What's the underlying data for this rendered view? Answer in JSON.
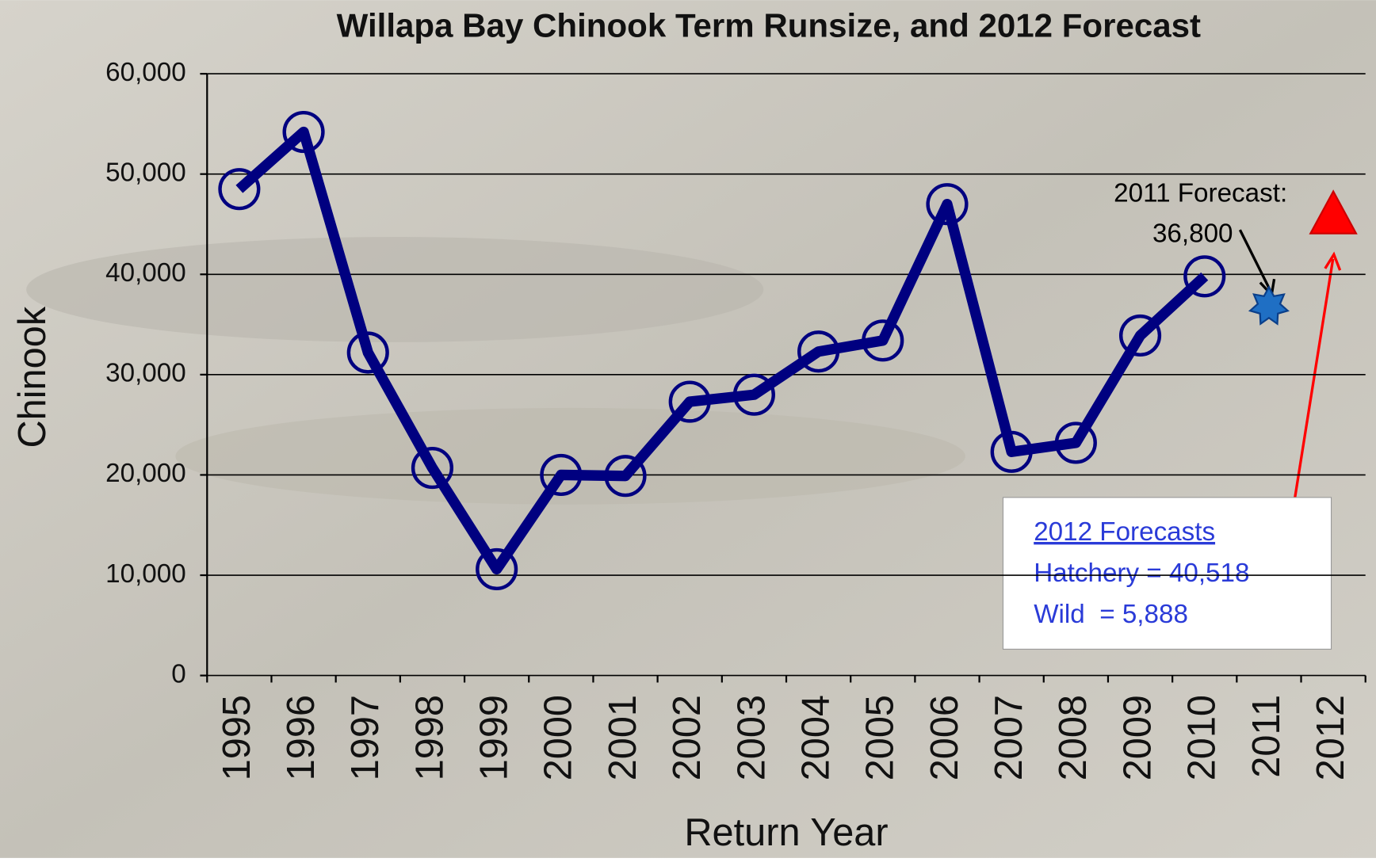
{
  "chart_data": {
    "type": "line",
    "title": "Willapa Bay Chinook Term Runsize, and 2012 Forecast",
    "x_label": "Return Year",
    "y_label": "Chinook",
    "categories": [
      "1995",
      "1996",
      "1997",
      "1998",
      "1999",
      "2000",
      "2001",
      "2002",
      "2003",
      "2004",
      "2005",
      "2006",
      "2007",
      "2008",
      "2009",
      "2010",
      "2011",
      "2012"
    ],
    "values": [
      48500,
      54200,
      32200,
      20700,
      10600,
      20000,
      19900,
      27300,
      28000,
      32300,
      33400,
      47000,
      22300,
      23200,
      33900,
      39800,
      null,
      null
    ],
    "color": "#000080",
    "ylim": [
      0,
      60000
    ],
    "yticks": [
      0,
      {
        "value": 10000,
        "label": "10,000"
      },
      {
        "value": 20000,
        "label": "20,000"
      },
      {
        "value": 30000,
        "label": "30,000"
      },
      {
        "value": 40000,
        "label": "40,000"
      },
      {
        "value": 50000,
        "label": "50,000"
      },
      {
        "value": 60000,
        "label": "60,000"
      }
    ],
    "grid": true,
    "forecasts": [
      {
        "category": "2011",
        "value": 36800,
        "value_label": "36,800",
        "label": "2011 Forecast:",
        "color": "#1f6fc4",
        "marker": "star"
      },
      {
        "category": "2012",
        "value": 46000,
        "color": "#ff0000",
        "marker": "triangle"
      }
    ],
    "forecast_box": {
      "title": "2012 Forecasts",
      "lines": [
        "Hatchery = 40,518",
        "Wild  = 5,888"
      ]
    }
  }
}
